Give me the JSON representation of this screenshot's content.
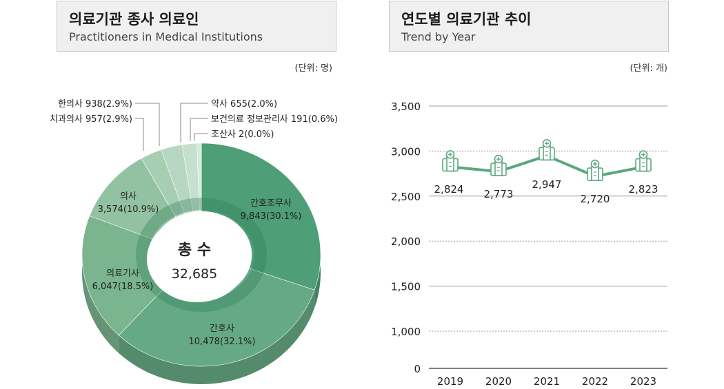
{
  "left_panel": {
    "title_ko": "의료기관 종사 의료인",
    "title_en": "Practitioners in Medical Institutions",
    "unit": "(단위: 명)"
  },
  "right_panel": {
    "title_ko": "연도별 의료기관 추이",
    "title_en": "Trend by Year",
    "unit": "(단위: 개)"
  },
  "chart_data": [
    {
      "type": "pie",
      "style": "3d-donut",
      "center_label": "총 수",
      "center_value": "32,685",
      "total": 32685,
      "slices": [
        {
          "name": "간호조무사",
          "value": 9843,
          "label": "9,843(30.1%)",
          "color": "#4e9e77"
        },
        {
          "name": "간호사",
          "value": 10478,
          "label": "10,478(32.1%)",
          "color": "#66a985"
        },
        {
          "name": "의료기사",
          "value": 6047,
          "label": "6,047(18.5%)",
          "color": "#7bb590"
        },
        {
          "name": "의사",
          "value": 3574,
          "label": "3,574(10.9%)",
          "color": "#93c2a2"
        },
        {
          "name": "치과의사",
          "value": 957,
          "label": "치과의사 957(2.9%)",
          "color": "#a7ceb3"
        },
        {
          "name": "한의사",
          "value": 938,
          "label": "한의사 938(2.9%)",
          "color": "#b7d7c2"
        },
        {
          "name": "약사",
          "value": 655,
          "label": "약사 655(2.0%)",
          "color": "#c6e0cf"
        },
        {
          "name": "보건의료 정보관리사",
          "value": 191,
          "label": "보건의료 정보관리사 191(0.6%)",
          "color": "#d6e9dc"
        },
        {
          "name": "조산사",
          "value": 2,
          "label": "조산사 2(0.0%)",
          "color": "#cfe3d6"
        }
      ]
    },
    {
      "type": "line",
      "categories": [
        "2019",
        "2020",
        "2021",
        "2022",
        "2023"
      ],
      "values": [
        2824,
        2773,
        2947,
        2720,
        2823
      ],
      "value_labels": [
        "2,824",
        "2,773",
        "2,947",
        "2,720",
        "2,823"
      ],
      "ylim": [
        0,
        3500
      ],
      "yticks": [
        "0",
        "1,000",
        "1,500",
        "2,000",
        "2,500",
        "3,000",
        "3,500"
      ],
      "line_color": "#5aa87e",
      "marker_icon": "hospital-icon",
      "grid": true
    }
  ]
}
